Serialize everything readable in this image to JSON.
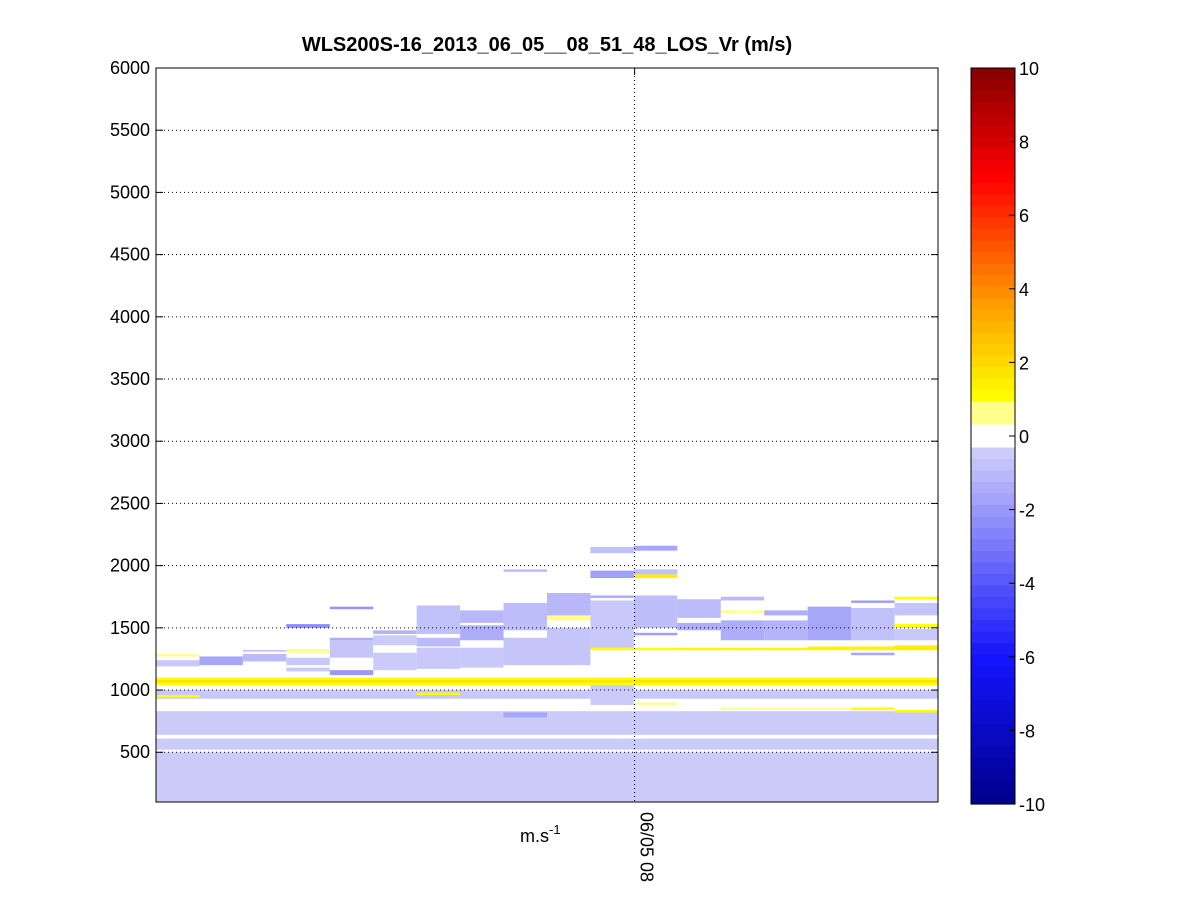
{
  "chart_data": {
    "type": "heatmap",
    "title": "WLS200S-16_2013_06_05__08_51_48_LOS_Vr (m/s)",
    "xlabel": "m.s",
    "xlabel_superscript": "-1",
    "x_ticks": [
      {
        "label": "06/05 08",
        "pos": 0.612
      }
    ],
    "ylim": [
      100,
      6000
    ],
    "y_ticks": [
      500,
      1000,
      1500,
      2000,
      2500,
      3000,
      3500,
      4000,
      4500,
      5000,
      5500,
      6000
    ],
    "grid": true,
    "colorbar": {
      "range": [
        -10,
        10
      ],
      "ticks": [
        10,
        8,
        6,
        4,
        2,
        0,
        -2,
        -4,
        -6,
        -8,
        -10
      ],
      "position": "right"
    },
    "columns": 18,
    "cells": [
      {
        "c": [
          0,
          17
        ],
        "y0": 160,
        "y1": 500,
        "v": -0.5
      },
      {
        "c": [
          0,
          17
        ],
        "y0": 520,
        "y1": 610,
        "v": -0.5
      },
      {
        "c": [
          0,
          17
        ],
        "y0": 640,
        "y1": 830,
        "v": -0.5
      },
      {
        "c": [
          0,
          17
        ],
        "y0": 930,
        "y1": 1000,
        "v": -0.6
      },
      {
        "c": [
          0,
          17
        ],
        "y0": 1060,
        "y1": 1080,
        "v": 1.8
      },
      {
        "c": [
          0,
          17
        ],
        "y0": 1040,
        "y1": 1060,
        "v": 1.0
      },
      {
        "c": [
          0,
          17
        ],
        "y0": 1080,
        "y1": 1100,
        "v": 1.1
      },
      {
        "c": [
          0,
          0
        ],
        "y0": 940,
        "y1": 960,
        "v": 1.0
      },
      {
        "c": [
          4,
          4
        ],
        "y0": 1120,
        "y1": 1160,
        "v": -2.0
      },
      {
        "c": [
          0,
          0
        ],
        "y0": 1190,
        "y1": 1240,
        "v": -0.6
      },
      {
        "c": [
          0,
          0
        ],
        "y0": 1270,
        "y1": 1290,
        "v": 0.8
      },
      {
        "c": [
          1,
          1
        ],
        "y0": 1200,
        "y1": 1270,
        "v": -1.6
      },
      {
        "c": [
          2,
          2
        ],
        "y0": 1230,
        "y1": 1290,
        "v": -1.0
      },
      {
        "c": [
          2,
          2
        ],
        "y0": 1310,
        "y1": 1320,
        "v": -1.4
      },
      {
        "c": [
          3,
          3
        ],
        "y0": 1150,
        "y1": 1180,
        "v": -0.6
      },
      {
        "c": [
          3,
          3
        ],
        "y0": 1300,
        "y1": 1330,
        "v": 0.8
      },
      {
        "c": [
          3,
          3
        ],
        "y0": 1500,
        "y1": 1530,
        "v": -2.4
      },
      {
        "c": [
          3,
          3
        ],
        "y0": 1200,
        "y1": 1260,
        "v": -0.6
      },
      {
        "c": [
          4,
          4
        ],
        "y0": 1260,
        "y1": 1400,
        "v": -0.7
      },
      {
        "c": [
          4,
          4
        ],
        "y0": 1400,
        "y1": 1420,
        "v": -1.4
      },
      {
        "c": [
          4,
          4
        ],
        "y0": 1650,
        "y1": 1670,
        "v": -2.2
      },
      {
        "c": [
          5,
          5
        ],
        "y0": 1160,
        "y1": 1300,
        "v": -0.5
      },
      {
        "c": [
          5,
          5
        ],
        "y0": 1360,
        "y1": 1440,
        "v": -0.5
      },
      {
        "c": [
          5,
          5
        ],
        "y0": 1450,
        "y1": 1480,
        "v": -1.2
      },
      {
        "c": [
          6,
          6
        ],
        "y0": 960,
        "y1": 980,
        "v": 1.0
      },
      {
        "c": [
          6,
          6
        ],
        "y0": 1170,
        "y1": 1340,
        "v": -0.6
      },
      {
        "c": [
          6,
          6
        ],
        "y0": 1350,
        "y1": 1420,
        "v": -1.0
      },
      {
        "c": [
          6,
          6
        ],
        "y0": 1450,
        "y1": 1680,
        "v": -0.8
      },
      {
        "c": [
          7,
          7
        ],
        "y0": 1180,
        "y1": 1340,
        "v": -0.6
      },
      {
        "c": [
          7,
          7
        ],
        "y0": 1400,
        "y1": 1520,
        "v": -1.4
      },
      {
        "c": [
          7,
          7
        ],
        "y0": 1540,
        "y1": 1640,
        "v": -1.1
      },
      {
        "c": [
          8,
          8
        ],
        "y0": 780,
        "y1": 820,
        "v": -1.6
      },
      {
        "c": [
          8,
          8
        ],
        "y0": 1200,
        "y1": 1420,
        "v": -0.7
      },
      {
        "c": [
          8,
          8
        ],
        "y0": 1480,
        "y1": 1700,
        "v": -0.9
      },
      {
        "c": [
          8,
          8
        ],
        "y0": 1950,
        "y1": 1970,
        "v": -1.0
      },
      {
        "c": [
          9,
          9
        ],
        "y0": 1200,
        "y1": 1500,
        "v": -0.7
      },
      {
        "c": [
          9,
          9
        ],
        "y0": 1560,
        "y1": 1600,
        "v": 0.8
      },
      {
        "c": [
          9,
          9
        ],
        "y0": 1600,
        "y1": 1780,
        "v": -1.1
      },
      {
        "c": [
          10,
          10
        ],
        "y0": 880,
        "y1": 1040,
        "v": -0.5
      },
      {
        "c": [
          10,
          10
        ],
        "y0": 1320,
        "y1": 1340,
        "v": 1.0
      },
      {
        "c": [
          10,
          10
        ],
        "y0": 1340,
        "y1": 1720,
        "v": -0.6
      },
      {
        "c": [
          10,
          10
        ],
        "y0": 1740,
        "y1": 1760,
        "v": -1.4
      },
      {
        "c": [
          10,
          10
        ],
        "y0": 1900,
        "y1": 1960,
        "v": -1.8
      },
      {
        "c": [
          10,
          10
        ],
        "y0": 2100,
        "y1": 2150,
        "v": -0.8
      },
      {
        "c": [
          11,
          11
        ],
        "y0": 880,
        "y1": 900,
        "v": 0.8
      },
      {
        "c": [
          11,
          11
        ],
        "y0": 1320,
        "y1": 1340,
        "v": 1.0
      },
      {
        "c": [
          11,
          11
        ],
        "y0": 1440,
        "y1": 1460,
        "v": -1.8
      },
      {
        "c": [
          11,
          11
        ],
        "y0": 1500,
        "y1": 1760,
        "v": -0.9
      },
      {
        "c": [
          11,
          11
        ],
        "y0": 1900,
        "y1": 1930,
        "v": 1.4
      },
      {
        "c": [
          11,
          11
        ],
        "y0": 1930,
        "y1": 1970,
        "v": -0.8
      },
      {
        "c": [
          11,
          11
        ],
        "y0": 2120,
        "y1": 2160,
        "v": -1.6
      },
      {
        "c": [
          12,
          12
        ],
        "y0": 1320,
        "y1": 1340,
        "v": 1.2
      },
      {
        "c": [
          12,
          12
        ],
        "y0": 1480,
        "y1": 1540,
        "v": -1.4
      },
      {
        "c": [
          12,
          12
        ],
        "y0": 1580,
        "y1": 1730,
        "v": -1.0
      },
      {
        "c": [
          13,
          13
        ],
        "y0": 840,
        "y1": 860,
        "v": 0.8
      },
      {
        "c": [
          13,
          13
        ],
        "y0": 1320,
        "y1": 1340,
        "v": 1.2
      },
      {
        "c": [
          13,
          13
        ],
        "y0": 1400,
        "y1": 1560,
        "v": -1.4
      },
      {
        "c": [
          13,
          13
        ],
        "y0": 1620,
        "y1": 1640,
        "v": 0.8
      },
      {
        "c": [
          13,
          13
        ],
        "y0": 1720,
        "y1": 1750,
        "v": -1.0
      },
      {
        "c": [
          14,
          14
        ],
        "y0": 840,
        "y1": 860,
        "v": 0.8
      },
      {
        "c": [
          14,
          14
        ],
        "y0": 1320,
        "y1": 1340,
        "v": 1.2
      },
      {
        "c": [
          14,
          14
        ],
        "y0": 1400,
        "y1": 1560,
        "v": -1.2
      },
      {
        "c": [
          14,
          14
        ],
        "y0": 1600,
        "y1": 1640,
        "v": -1.4
      },
      {
        "c": [
          15,
          15
        ],
        "y0": 840,
        "y1": 860,
        "v": 0.8
      },
      {
        "c": [
          15,
          15
        ],
        "y0": 1320,
        "y1": 1350,
        "v": 1.3
      },
      {
        "c": [
          15,
          15
        ],
        "y0": 1400,
        "y1": 1670,
        "v": -1.6
      },
      {
        "c": [
          16,
          16
        ],
        "y0": 840,
        "y1": 860,
        "v": 1.0
      },
      {
        "c": [
          16,
          16
        ],
        "y0": 1280,
        "y1": 1300,
        "v": -1.6
      },
      {
        "c": [
          16,
          16
        ],
        "y0": 1320,
        "y1": 1350,
        "v": 1.3
      },
      {
        "c": [
          16,
          16
        ],
        "y0": 1400,
        "y1": 1660,
        "v": -0.8
      },
      {
        "c": [
          16,
          16
        ],
        "y0": 1700,
        "y1": 1720,
        "v": -1.8
      },
      {
        "c": [
          17,
          17
        ],
        "y0": 820,
        "y1": 840,
        "v": 1.0
      },
      {
        "c": [
          17,
          17
        ],
        "y0": 1320,
        "y1": 1360,
        "v": 1.4
      },
      {
        "c": [
          17,
          17
        ],
        "y0": 1500,
        "y1": 1530,
        "v": 1.0
      },
      {
        "c": [
          17,
          17
        ],
        "y0": 1400,
        "y1": 1490,
        "v": -0.6
      },
      {
        "c": [
          17,
          17
        ],
        "y0": 1600,
        "y1": 1700,
        "v": -0.7
      },
      {
        "c": [
          17,
          17
        ],
        "y0": 1730,
        "y1": 1750,
        "v": 1.0
      },
      {
        "c": [
          0,
          17
        ],
        "y0": 100,
        "y1": 160,
        "v": -0.5
      }
    ]
  }
}
